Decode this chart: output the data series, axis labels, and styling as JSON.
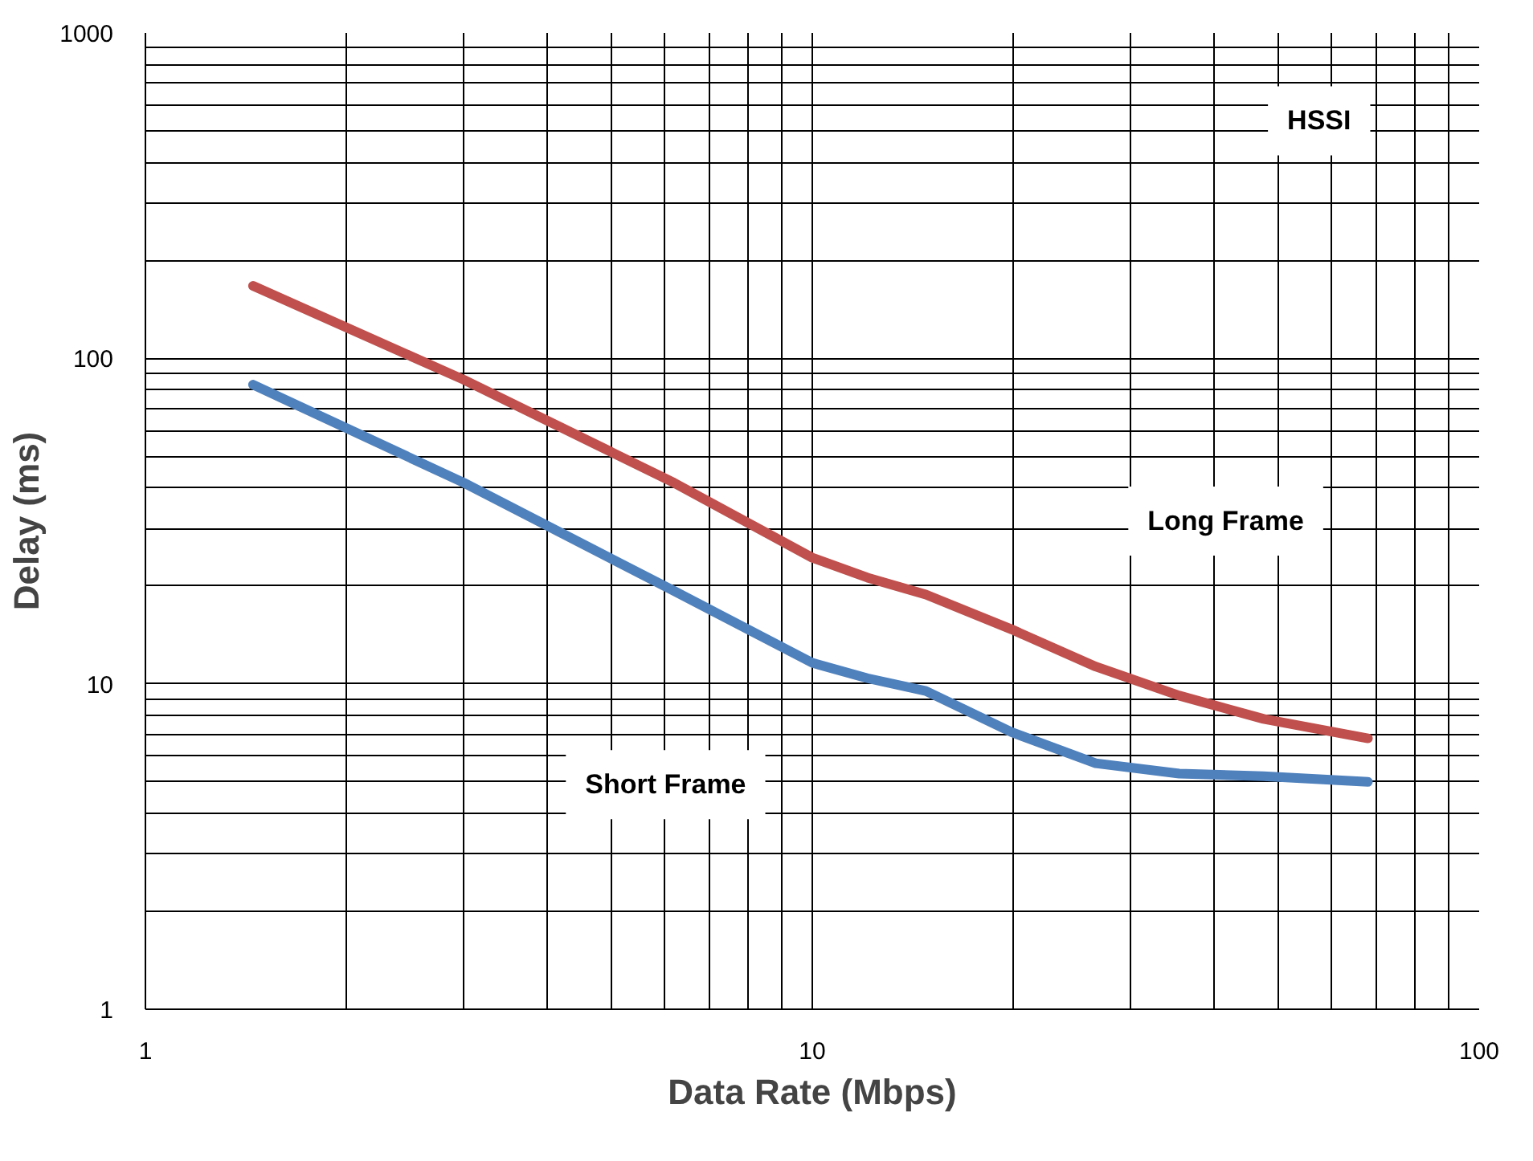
{
  "chart_data": {
    "type": "line",
    "xlabel": "Data Rate (Mbps)",
    "ylabel": "Delay (ms)",
    "log": "xy",
    "grid": true,
    "marker": "none",
    "line_style": "solid",
    "xlim": [
      1,
      100
    ],
    "ylim": [
      1,
      1000
    ],
    "xticks": [
      1,
      10,
      100
    ],
    "yticks": [
      1,
      10,
      100,
      1000
    ],
    "series": [
      {
        "color": "#c0504d",
        "x": [
          1.45,
          3.0,
          6.2,
          10,
          12.1,
          14.8,
          19.9,
          26.6,
          35.5,
          47.5,
          68.1
        ],
        "values": [
          167,
          86,
          41.5,
          24.4,
          21.2,
          18.8,
          14.7,
          11.3,
          9.2,
          7.8,
          6.8
        ]
      },
      {
        "color": "#4f81bd",
        "x": [
          1.45,
          3.0,
          6.2,
          10,
          12.1,
          14.8,
          19.9,
          26.6,
          35.5,
          47.5,
          68.1
        ],
        "values": [
          83,
          41.5,
          19.3,
          11.6,
          10.4,
          9.5,
          7.1,
          5.7,
          5.3,
          5.2,
          5.0
        ]
      }
    ],
    "annotations": [
      "HSSI",
      "Long Frame",
      "Short Frame"
    ]
  }
}
